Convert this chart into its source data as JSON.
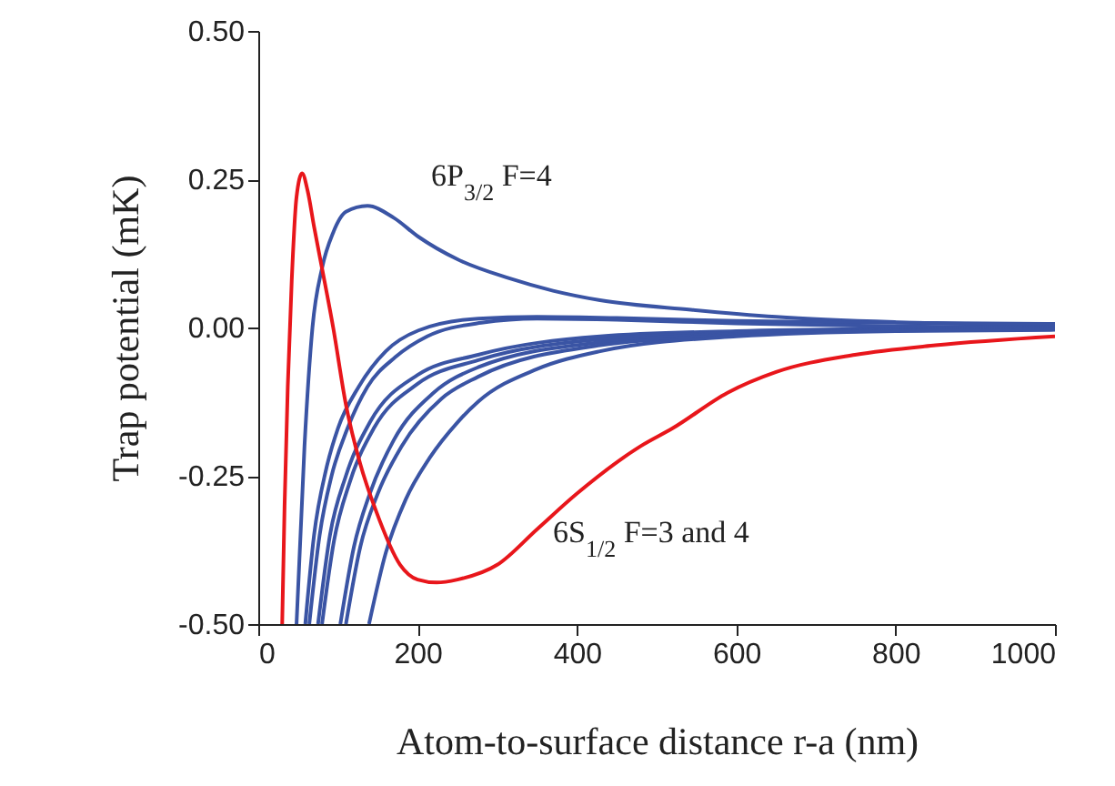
{
  "chart_data": {
    "type": "line",
    "xlabel": "Atom-to-surface distance r-a (nm)",
    "ylabel": "Trap potential (mK)",
    "xlim": [
      0,
      1000
    ],
    "xticks": [
      0,
      200,
      400,
      600,
      800,
      1000
    ],
    "ylim": [
      -0.5,
      0.5
    ],
    "yticks": [
      {
        "value": -0.5,
        "label": "-0.50"
      },
      {
        "value": -0.25,
        "label": "-0.25"
      },
      {
        "value": 0,
        "label": "0.00"
      },
      {
        "value": 0.25,
        "label": "0.25"
      },
      {
        "value": 0.5,
        "label": "0.50"
      }
    ],
    "grid": false,
    "line_style": "solid",
    "marker": "none",
    "annotations": [
      "6P$_{3/2}$ F=4",
      "6S$_{1/2}$ F=3 and 4"
    ],
    "series": [
      {
        "color": "#3a54a4",
        "x": [
          48,
          58,
          68,
          80,
          94,
          110,
          137,
          170,
          201,
          250,
          315,
          370,
          429,
          543,
          650,
          800,
          1000
        ],
        "values": [
          -0.5,
          -0.2,
          0,
          0.1,
          0.16,
          0.195,
          0.205,
          0.185,
          0.153,
          0.115,
          0.083,
          0.062,
          0.046,
          0.03,
          0.018,
          0.009,
          0.004
        ]
      },
      {
        "color": "#3a54a4",
        "x": [
          59,
          70,
          85,
          100,
          126,
          160,
          201,
          276,
          350,
          450,
          600,
          800,
          1000
        ],
        "values": [
          -0.5,
          -0.35,
          -0.24,
          -0.17,
          -0.1,
          -0.04,
          -0.005,
          0.015,
          0.018,
          0.016,
          0.011,
          0.008,
          0.006
        ]
      },
      {
        "color": "#3a54a4",
        "x": [
          64,
          77,
          92,
          112,
          137,
          172,
          212,
          280,
          350,
          450,
          600,
          800,
          1000
        ],
        "values": [
          -0.5,
          -0.35,
          -0.25,
          -0.17,
          -0.1,
          -0.05,
          -0.015,
          0.008,
          0.015,
          0.013,
          0.007,
          0.002,
          0
        ]
      },
      {
        "color": "#3a54a4",
        "x": [
          75,
          90,
          110,
          140,
          200,
          276,
          429,
          600,
          800,
          1000
        ],
        "values": [
          -0.5,
          -0.35,
          -0.25,
          -0.16,
          -0.08,
          -0.046,
          -0.015,
          -0.006,
          -0.002,
          0
        ]
      },
      {
        "color": "#3a54a4",
        "x": [
          80,
          95,
          115,
          145,
          200,
          276,
          429,
          600,
          800,
          1000
        ],
        "values": [
          -0.5,
          -0.36,
          -0.26,
          -0.17,
          -0.095,
          -0.055,
          -0.02,
          -0.009,
          -0.003,
          -0.001
        ]
      },
      {
        "color": "#3a54a4",
        "x": [
          103,
          120,
          140,
          170,
          220,
          276,
          429,
          600,
          800,
          1000
        ],
        "values": [
          -0.5,
          -0.37,
          -0.28,
          -0.19,
          -0.11,
          -0.067,
          -0.025,
          -0.011,
          -0.004,
          -0.002
        ]
      },
      {
        "color": "#3a54a4",
        "x": [
          110,
          128,
          150,
          180,
          230,
          276,
          429,
          600,
          800,
          1000
        ],
        "values": [
          -0.5,
          -0.37,
          -0.28,
          -0.2,
          -0.12,
          -0.083,
          -0.03,
          -0.013,
          -0.005,
          -0.003
        ]
      },
      {
        "color": "#3a54a4",
        "x": [
          139,
          160,
          185,
          215,
          250,
          276,
          350,
          429,
          600,
          800,
          1000
        ],
        "values": [
          -0.5,
          -0.38,
          -0.29,
          -0.22,
          -0.16,
          -0.125,
          -0.07,
          -0.04,
          -0.015,
          -0.006,
          -0.004
        ]
      },
      {
        "color": "#e8161b",
        "x": [
          30,
          33,
          37,
          42,
          48,
          55,
          62,
          70,
          80,
          94,
          110,
          128,
          148,
          178,
          200,
          224,
          250,
          300,
          350,
          400,
          480,
          520,
          589,
          650,
          749,
          850,
          1000
        ],
        "values": [
          -0.5,
          -0.3,
          -0.1,
          0.08,
          0.22,
          0.26,
          0.23,
          0.17,
          0.1,
          0,
          -0.13,
          -0.23,
          -0.31,
          -0.4,
          -0.425,
          -0.43,
          -0.425,
          -0.4,
          -0.34,
          -0.28,
          -0.2,
          -0.17,
          -0.11,
          -0.075,
          -0.046,
          -0.03,
          -0.015
        ]
      }
    ]
  }
}
